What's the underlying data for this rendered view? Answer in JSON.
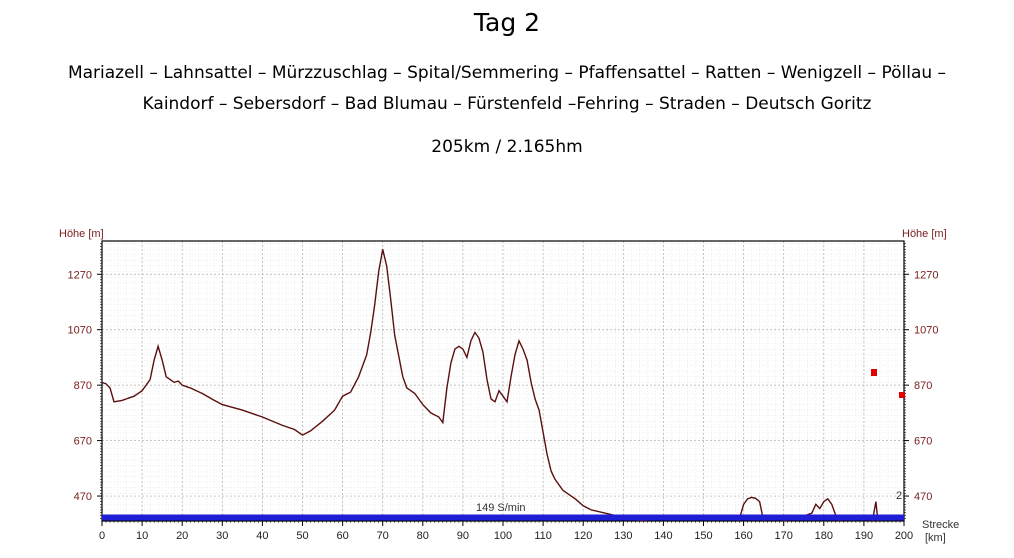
{
  "title": "Tag 2",
  "route_line1": "Mariazell – Lahnsattel – Mürzzuschlag – Spital/Semmering – Pfaffensattel – Ratten – Wenigzell – Pöllau –",
  "route_line2": "Kaindorf – Sebersdorf – Bad Blumau – Fürstenfeld –Fehring – Straden – Deutsch Goritz",
  "stats": "205km / 2.165hm",
  "colors": {
    "profile": "#5a0f0f",
    "axis_label": "#7a2020",
    "cadence_bar": "#1e1ed6",
    "grid": "#cccccc"
  },
  "chart_data": {
    "type": "line",
    "ylabel_left": "Höhe [m]",
    "ylabel_right": "Höhe [m]",
    "xlabel": "Strecke",
    "xlabel_unit": "[km]",
    "xlim": [
      0,
      200
    ],
    "ylim": [
      380,
      1390
    ],
    "xticks": [
      0,
      10,
      20,
      30,
      40,
      50,
      60,
      70,
      80,
      90,
      100,
      110,
      120,
      130,
      140,
      150,
      160,
      170,
      180,
      190,
      200
    ],
    "yticks": [
      470,
      670,
      870,
      1070,
      1270
    ],
    "annotation": "149 S/min",
    "right_axis_extra_label": "2",
    "series": [
      {
        "x": [
          0,
          1,
          2,
          3,
          5,
          8,
          10,
          12,
          13,
          14,
          15,
          16,
          17,
          18,
          19,
          20,
          22,
          25,
          28,
          30,
          35,
          40,
          45,
          48,
          50,
          52,
          55,
          58,
          60,
          62,
          64,
          66,
          67,
          68,
          69,
          70,
          71,
          72,
          73,
          75,
          76,
          77,
          78,
          80,
          82,
          84,
          85,
          86,
          87,
          88,
          89,
          90,
          91,
          92,
          93,
          94,
          95,
          96,
          97,
          98,
          99,
          100,
          101,
          102,
          103,
          104,
          105,
          106,
          107,
          108,
          109,
          110,
          111,
          112,
          113,
          114,
          115,
          116,
          118,
          120,
          122,
          125,
          128,
          130,
          133,
          135,
          138,
          140,
          143,
          145,
          148,
          150,
          151,
          152,
          153,
          155,
          158,
          159,
          160,
          161,
          162,
          163,
          164,
          165,
          166,
          167,
          168,
          170,
          172,
          175,
          177,
          178,
          179,
          180,
          181,
          182,
          183,
          184,
          185,
          186,
          188,
          190,
          191,
          192,
          192.5,
          193,
          193.5,
          194,
          195,
          196,
          197,
          198,
          199,
          200
        ],
        "y": [
          880,
          875,
          860,
          810,
          815,
          830,
          850,
          890,
          960,
          1010,
          960,
          900,
          890,
          880,
          885,
          870,
          860,
          840,
          815,
          800,
          780,
          755,
          725,
          710,
          690,
          705,
          740,
          780,
          830,
          845,
          900,
          980,
          1060,
          1160,
          1280,
          1360,
          1300,
          1180,
          1050,
          900,
          860,
          850,
          840,
          800,
          770,
          755,
          735,
          860,
          950,
          1000,
          1010,
          1000,
          970,
          1030,
          1060,
          1040,
          990,
          890,
          820,
          810,
          850,
          830,
          810,
          900,
          980,
          1030,
          1000,
          960,
          880,
          820,
          780,
          700,
          620,
          560,
          530,
          510,
          490,
          480,
          460,
          435,
          420,
          410,
          400,
          390,
          385,
          380,
          375,
          372,
          370,
          368,
          367,
          365,
          378,
          376,
          372,
          365,
          368,
          390,
          440,
          460,
          465,
          462,
          450,
          380,
          372,
          370,
          372,
          380,
          388,
          398,
          408,
          440,
          425,
          450,
          460,
          440,
          400,
          380,
          375,
          370,
          366,
          365,
          363,
          370,
          410,
          450,
          380,
          366,
          364,
          364,
          363,
          363,
          362,
          362
        ]
      }
    ]
  }
}
